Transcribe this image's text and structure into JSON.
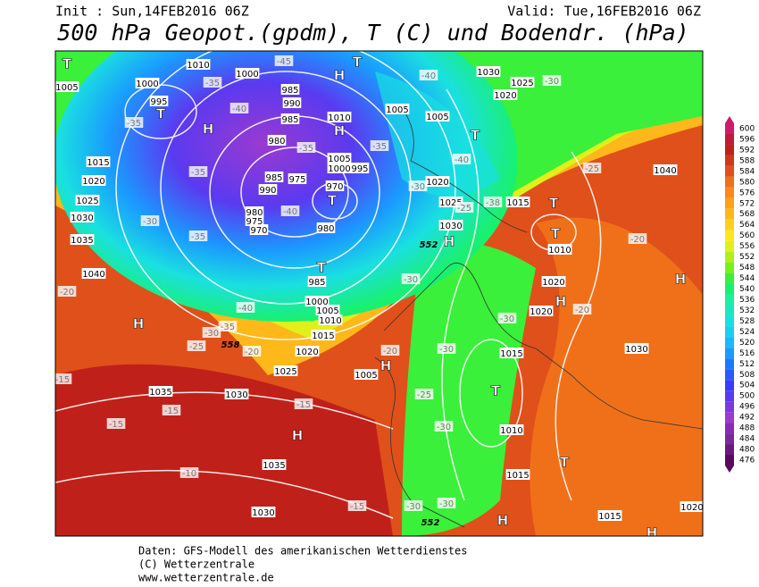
{
  "header": {
    "init": "Init : Sun,14FEB2016 06Z",
    "valid": "Valid: Tue,16FEB2016 06Z",
    "title": "500 hPa Geopot.(gpdm), T (C) und Bodendr. (hPa)"
  },
  "colorbar": {
    "ticks": [
      476,
      480,
      484,
      488,
      492,
      496,
      500,
      504,
      508,
      512,
      516,
      520,
      524,
      528,
      532,
      536,
      540,
      544,
      548,
      552,
      556,
      560,
      564,
      568,
      572,
      576,
      580,
      584,
      588,
      592,
      596,
      600
    ],
    "colors": [
      "#5a0a5a",
      "#6a1a7a",
      "#7a2a9a",
      "#8a2ab8",
      "#9a3ad0",
      "#7a3ae0",
      "#5a3af0",
      "#3a3aff",
      "#2a5aff",
      "#1a7aff",
      "#1a9aff",
      "#1ab8ff",
      "#1ad0f0",
      "#1ae0e0",
      "#1ae8c0",
      "#1af0a0",
      "#1af070",
      "#3af03a",
      "#7af01a",
      "#b0f01a",
      "#e0f01a",
      "#ffe81a",
      "#ffd01a",
      "#ffb81a",
      "#ffa01a",
      "#ff881a",
      "#f0701a",
      "#e0501a",
      "#d0381a",
      "#c0201a",
      "#c01a3a",
      "#d01a6a"
    ]
  },
  "map_labels": [
    "T",
    "1010",
    "1000",
    "H",
    "T",
    "1005",
    "1000",
    "995",
    "T",
    "-35",
    "H",
    "985",
    "990",
    "985",
    "1010",
    "H",
    "980",
    "1005",
    "1000",
    "995",
    "975",
    "985",
    "990",
    "970",
    "T",
    "980",
    "975",
    "970",
    "980",
    "T",
    "985",
    "1000",
    "1005",
    "1010",
    "1015",
    "H",
    "558",
    "1020",
    "1025",
    "1035",
    "1030",
    "H",
    "1035",
    "1030",
    "1015",
    "1020",
    "1025",
    "1030",
    "1035",
    "1040",
    "1030",
    "1025",
    "1020",
    "1005",
    "1005",
    "T",
    "1020",
    "1015",
    "T",
    "T",
    "1010",
    "1025",
    "1030",
    "H",
    "552",
    "1040",
    "H",
    "1020",
    "H",
    "1020",
    "1030",
    "1015",
    "T",
    "1010",
    "T",
    "1015",
    "H",
    "552",
    "1015",
    "1020",
    "H",
    "-40",
    "-30",
    "-25",
    "-20",
    "-20",
    "-30",
    "-30",
    "-25",
    "-15",
    "-15",
    "-15",
    "-10",
    "-15",
    "-30",
    "-30",
    "-20",
    "-15",
    "-25",
    "-30",
    "-35",
    "-40",
    "-35",
    "-30",
    "-35",
    "-40",
    "-40",
    "-35",
    "-45",
    "-35",
    "-35",
    "-30",
    "-40",
    "-38",
    "-30",
    "-20",
    "-20",
    "-30",
    "H",
    "1005",
    "-25"
  ],
  "footer": [
    "Daten: GFS-Modell des amerikanischen Wetterdienstes",
    "(C) Wetterzentrale",
    "www.wetterzentrale.de"
  ]
}
